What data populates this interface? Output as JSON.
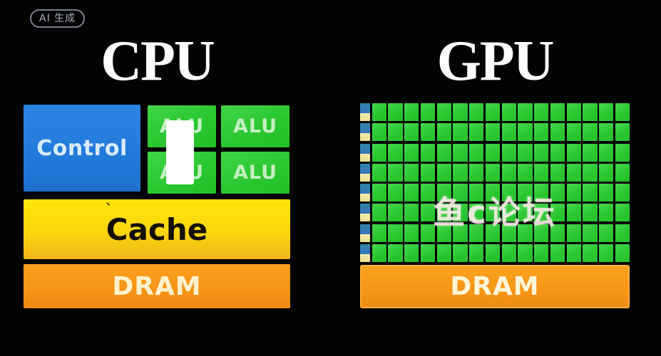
{
  "badge": {
    "label": "AI 生成"
  },
  "cpu": {
    "title": "CPU",
    "control_label": "Control",
    "alu_labels": [
      "ALU",
      "ALU",
      "ALU",
      "ALU"
    ],
    "cache_label": "Cache",
    "cache_tick": "ˋ",
    "dram_label": "DRAM"
  },
  "gpu": {
    "title": "GPU",
    "grid": {
      "rows": 8,
      "green_cols": 16
    },
    "watermark": "鱼c论坛",
    "dram_label": "DRAM"
  },
  "colors": {
    "background": "#030303",
    "title_text": "#ffffff",
    "control_blue": "#2079d8",
    "alu_green": "#2bc731",
    "cache_yellow": "#fbd60e",
    "dram_orange": "#f69417",
    "gpu_core_green": "#2bc731",
    "gpu_io_blue": "#3a74c2",
    "gpu_io_yellow": "#efe79f",
    "censor_white": "#ffffff"
  }
}
